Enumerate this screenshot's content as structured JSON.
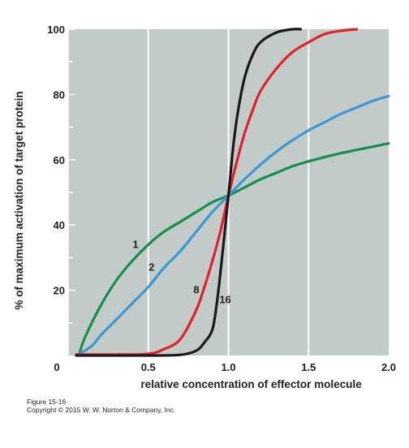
{
  "chart_data": {
    "type": "line",
    "title": "",
    "xlabel": "relative concentration of effector molecule",
    "ylabel": "% of maximum activation of target protein",
    "xlim": [
      0,
      2.0
    ],
    "ylim": [
      0,
      100
    ],
    "x_ticks": [
      "0",
      "0.5",
      "1.0",
      "1.5",
      "2.0"
    ],
    "y_ticks": [
      "20",
      "40",
      "60",
      "80",
      "100"
    ],
    "grid": "vertical lines at 0.5, 1.0, 1.5",
    "background_color": "#c2cbc7",
    "series": [
      {
        "name": "1",
        "color": "#14904a",
        "x": [
          0.07,
          0.1,
          0.2,
          0.3,
          0.4,
          0.5,
          0.6,
          0.7,
          0.8,
          0.9,
          1.0,
          1.1,
          1.2,
          1.3,
          1.4,
          1.5,
          1.6,
          1.7,
          1.8,
          1.9,
          2.0
        ],
        "y": [
          0.5,
          5,
          15,
          23,
          29,
          34,
          38,
          41,
          44,
          47,
          49,
          51.5,
          54,
          56,
          58,
          59.5,
          60.8,
          62,
          63,
          64,
          65
        ]
      },
      {
        "name": "2",
        "color": "#3a98d6",
        "x": [
          0.07,
          0.15,
          0.2,
          0.3,
          0.4,
          0.5,
          0.6,
          0.7,
          0.8,
          0.9,
          1.0,
          1.1,
          1.2,
          1.3,
          1.4,
          1.5,
          1.6,
          1.7,
          1.8,
          1.9,
          2.0
        ],
        "y": [
          0.5,
          3,
          6,
          11,
          16,
          21,
          27,
          32,
          38,
          44,
          49,
          54,
          58.5,
          62.5,
          66,
          69,
          71.5,
          74,
          76,
          78,
          79.5
        ]
      },
      {
        "name": "8",
        "color": "#e0232a",
        "x": [
          0.05,
          0.3,
          0.5,
          0.6,
          0.7,
          0.8,
          0.85,
          0.9,
          0.95,
          1.0,
          1.05,
          1.1,
          1.15,
          1.2,
          1.3,
          1.4,
          1.5,
          1.6,
          1.7,
          1.8
        ],
        "y": [
          0.3,
          0.3,
          0.5,
          2,
          5,
          14,
          21,
          29,
          38,
          49,
          59,
          68,
          75,
          81,
          88,
          93,
          96,
          98.5,
          99.5,
          100
        ]
      },
      {
        "name": "16",
        "color": "#1a1a1a",
        "x": [
          0.05,
          0.5,
          0.7,
          0.8,
          0.85,
          0.9,
          0.93,
          0.96,
          1.0,
          1.03,
          1.06,
          1.1,
          1.15,
          1.2,
          1.3,
          1.4,
          1.45
        ],
        "y": [
          0,
          0,
          0.2,
          1.5,
          4,
          8,
          17,
          30,
          49,
          64,
          75,
          85,
          92,
          96,
          99,
          100,
          100
        ]
      }
    ]
  },
  "caption": {
    "figure_number": "Figure 15-16",
    "copyright": "Copyright © 2015 W. W. Norton & Company, Inc."
  }
}
